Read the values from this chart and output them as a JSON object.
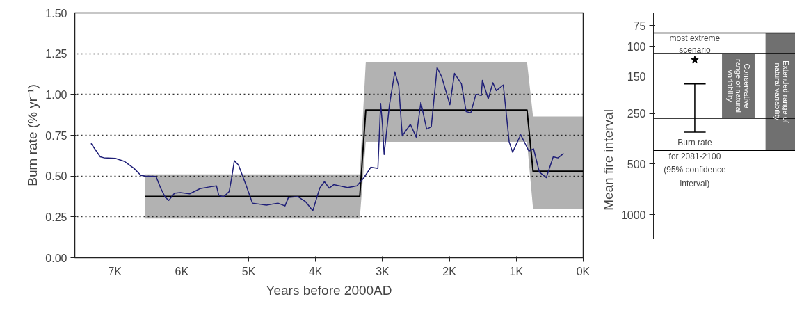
{
  "chart_data": [
    {
      "type": "line",
      "xlabel": "Years before 2000AD",
      "ylabel": "Burn rate (% yr⁻¹)",
      "xlim": [
        7600,
        0
      ],
      "xticks": [
        {
          "value": 7000,
          "label": "7K"
        },
        {
          "value": 6000,
          "label": "6K"
        },
        {
          "value": 5000,
          "label": "5K"
        },
        {
          "value": 4000,
          "label": "4K"
        },
        {
          "value": 3000,
          "label": "3K"
        },
        {
          "value": 2000,
          "label": "2K"
        },
        {
          "value": 1000,
          "label": "1K"
        },
        {
          "value": 0,
          "label": "0K"
        }
      ],
      "ylim": [
        0,
        1.5
      ],
      "yticks": [
        {
          "value": 0,
          "label": "0.00"
        },
        {
          "value": 0.25,
          "label": "0.25"
        },
        {
          "value": 0.5,
          "label": "0.50"
        },
        {
          "value": 0.75,
          "label": "0.75"
        },
        {
          "value": 1,
          "label": "1.00"
        },
        {
          "value": 1.25,
          "label": "1.25"
        },
        {
          "value": 1.5,
          "label": "1.50"
        }
      ],
      "grid": "y",
      "series": [
        {
          "type": "line",
          "color": "#000000",
          "x": [
            6550,
            3340,
            3250,
            840,
            750,
            0
          ],
          "values": [
            0.375,
            0.375,
            0.905,
            0.905,
            0.53,
            0.53
          ],
          "lower": [
            0.24,
            0.24,
            0.71,
            0.71,
            0.3,
            0.3
          ],
          "upper": [
            0.51,
            0.51,
            1.2,
            1.2,
            0.865,
            0.865
          ]
        },
        {
          "type": "line",
          "color": "#1f1f78",
          "x": [
            7357,
            7219,
            7167,
            6993,
            6854,
            6715,
            6611,
            6542,
            6385,
            6316,
            6247,
            6194,
            6108,
            6021,
            5882,
            5726,
            5604,
            5482,
            5448,
            5378,
            5292,
            5257,
            5215,
            5153,
            5049,
            4945,
            4736,
            4563,
            4458,
            4406,
            4267,
            4146,
            4042,
            3938,
            3868,
            3799,
            3729,
            3521,
            3382,
            3278,
            3174,
            3069,
            3028,
            3000,
            2976,
            2896,
            2816,
            2757,
            2705,
            2583,
            2497,
            2427,
            2340,
            2271,
            2184,
            2115,
            1993,
            1924,
            1820,
            1750,
            1680,
            1604,
            1524,
            1507,
            1420,
            1351,
            1299,
            1195,
            1160,
            1107,
            1055,
            934,
            812,
            742,
            656,
            552,
            448,
            378,
            292
          ],
          "values": [
            0.7,
            0.618,
            0.612,
            0.608,
            0.589,
            0.547,
            0.504,
            0.5,
            0.497,
            0.426,
            0.369,
            0.351,
            0.395,
            0.398,
            0.391,
            0.423,
            0.432,
            0.44,
            0.383,
            0.372,
            0.405,
            0.483,
            0.594,
            0.568,
            0.455,
            0.334,
            0.322,
            0.334,
            0.317,
            0.369,
            0.374,
            0.341,
            0.288,
            0.426,
            0.466,
            0.426,
            0.447,
            0.429,
            0.44,
            0.49,
            0.554,
            0.547,
            0.945,
            0.81,
            0.632,
            0.937,
            1.139,
            1.051,
            0.746,
            0.817,
            0.738,
            0.951,
            0.788,
            0.802,
            1.165,
            1.108,
            0.937,
            1.129,
            1.065,
            0.895,
            0.888,
            1.001,
            0.994,
            1.087,
            0.973,
            1.072,
            1.023,
            1.058,
            0.923,
            0.71,
            0.646,
            0.753,
            0.653,
            0.667,
            0.525,
            0.49,
            0.618,
            0.611,
            0.639
          ]
        }
      ]
    },
    {
      "type": "bar",
      "ylabel": "Mean fire interval",
      "ylim": [
        1400,
        63
      ],
      "log": "y",
      "yticks": [
        75,
        100,
        150,
        250,
        500,
        1000
      ],
      "categories": [
        null,
        null,
        null
      ],
      "tick_labels": "y",
      "series": [
        {
          "type": "bar",
          "name": "Conservative\nrange of natural\nvariability",
          "color": "#707070",
          "values": [
            null,
            157,
            null
          ],
          "base": [
            null,
            110,
            null
          ]
        },
        {
          "type": "bar",
          "name": "Extended range of\nnatural variability",
          "color": "#707070",
          "values": [
            null,
            null,
            332
          ],
          "base": [
            null,
            null,
            83
          ]
        },
        {
          "type": "bar",
          "name": "Burn rate\nfor 2081-2100\n(95% confidence\ninterval)",
          "color": "#000000",
          "values": [
            156,
            null,
            null
          ],
          "base": [
            167,
            null,
            null
          ]
        },
        {
          "type": "scatter",
          "name": "most extreme\nscenario",
          "marker": "star",
          "color": "#000000",
          "values": [
            120,
            null,
            null
          ]
        }
      ],
      "ref_lines": [
        {
          "axis": "y",
          "value": 83,
          "color": "#000000"
        },
        {
          "axis": "y",
          "value": 110,
          "color": "#000000"
        },
        {
          "axis": "y",
          "value": 267,
          "color": "#000000"
        },
        {
          "axis": "y",
          "value": 415,
          "color": "#000000"
        }
      ]
    }
  ]
}
